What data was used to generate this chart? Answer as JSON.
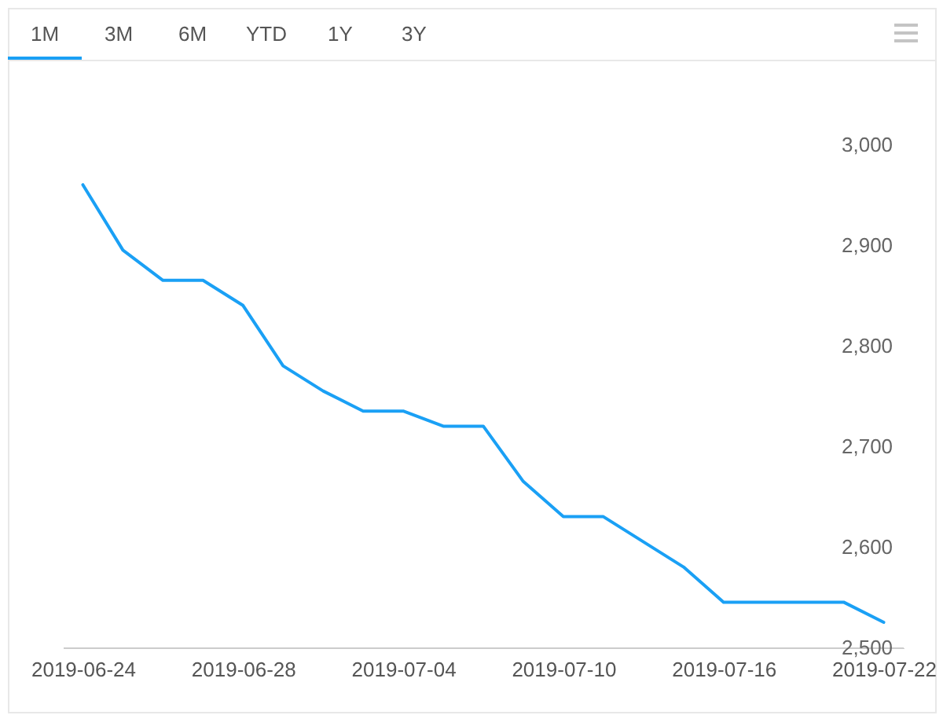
{
  "chart_data": {
    "type": "line",
    "categories": [
      "2019-06-24",
      null,
      null,
      null,
      "2019-06-28",
      null,
      null,
      null,
      "2019-07-04",
      null,
      null,
      null,
      "2019-07-10",
      null,
      null,
      null,
      "2019-07-16",
      null,
      null,
      null,
      "2019-07-22"
    ],
    "values": [
      2960,
      2895,
      2865,
      2865,
      2840,
      2780,
      2755,
      2735,
      2735,
      2720,
      2720,
      2665,
      2630,
      2630,
      2605,
      2580,
      2545,
      2545,
      2545,
      2545,
      2525
    ],
    "color": "#1aa0f5",
    "ylim": [
      2500,
      3000
    ],
    "yticks": [
      {
        "value": 2500,
        "label": "2,500"
      },
      {
        "value": 2600,
        "label": "2,600"
      },
      {
        "value": 2700,
        "label": "2,700"
      },
      {
        "value": 2800,
        "label": "2,800"
      },
      {
        "value": 2900,
        "label": "2,900"
      },
      {
        "value": 3000,
        "label": "3,000"
      }
    ],
    "annotations": [
      "1M",
      "3M",
      "6M",
      "YTD",
      "1Y",
      "3Y"
    ]
  }
}
